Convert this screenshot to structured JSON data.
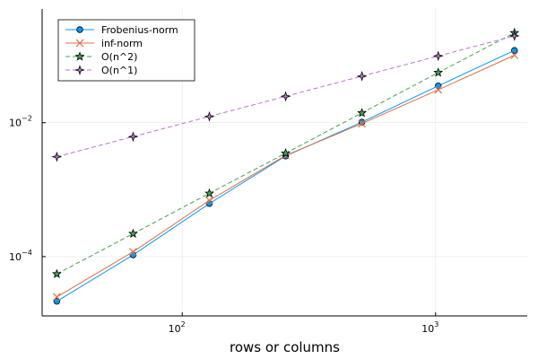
{
  "chart_data": {
    "type": "line",
    "xscale": "log",
    "yscale": "log",
    "xlabel": "rows or columns",
    "ylabel": "",
    "xlim": [
      28,
      2300
    ],
    "ylim": [
      1.3e-05,
      0.5
    ],
    "grid": true,
    "legend_position": "top-left",
    "x_ticks": [
      {
        "value": 100,
        "base": "10",
        "exp": "2"
      },
      {
        "value": 1000,
        "base": "10",
        "exp": "3"
      }
    ],
    "y_ticks": [
      {
        "value": 0.0001,
        "base": "10",
        "exp": "−4"
      },
      {
        "value": 0.01,
        "base": "10",
        "exp": "−2"
      }
    ],
    "x": [
      32,
      64,
      128,
      256,
      512,
      1024,
      2048
    ],
    "series": [
      {
        "name": "Frobenius-norm",
        "color": "#009AFA",
        "dash": "solid",
        "marker": "circle",
        "values": [
          2.15e-05,
          0.000106,
          0.00062,
          0.00318,
          0.0102,
          0.0355,
          0.12
        ]
      },
      {
        "name": "inf-norm",
        "color": "#E26F46",
        "dash": "solid",
        "marker": "x",
        "values": [
          2.5e-05,
          0.000118,
          0.00069,
          0.00325,
          0.0097,
          0.031,
          0.102
        ]
      },
      {
        "name": "O(n^2)",
        "color": "#3EA44E",
        "dash": "dashed",
        "marker": "star",
        "values": [
          5.5e-05,
          0.00022,
          0.00088,
          0.0035,
          0.014,
          0.056,
          0.22
        ]
      },
      {
        "name": "O(n^1)",
        "color": "#C271D2",
        "dash": "dashed",
        "marker": "star4",
        "values": [
          0.0031,
          0.0062,
          0.0124,
          0.0248,
          0.0496,
          0.0992,
          0.198
        ]
      }
    ]
  }
}
